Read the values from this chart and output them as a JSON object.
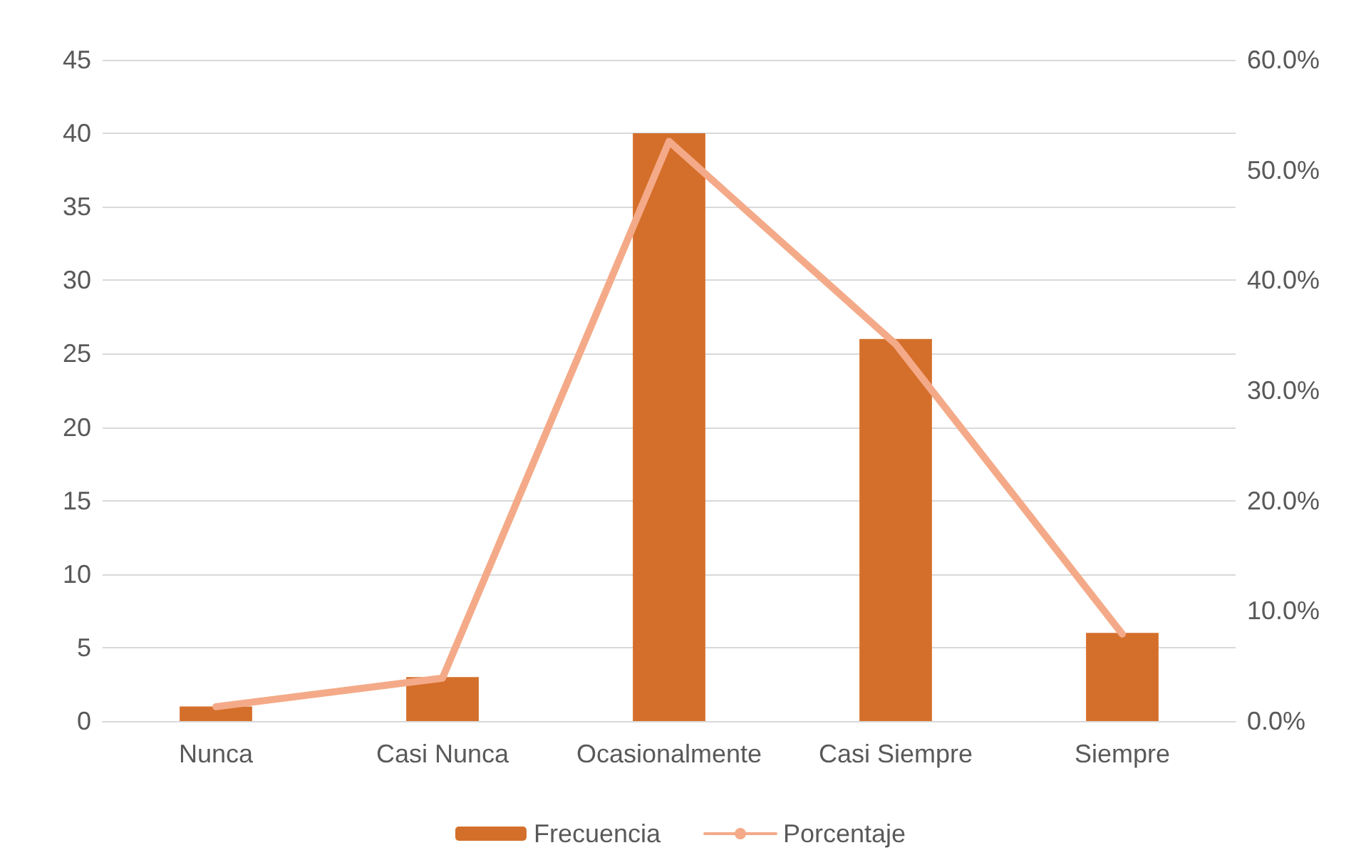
{
  "chart_data": {
    "type": "bar",
    "categories": [
      "Nunca",
      "Casi Nunca",
      "Ocasionalmente",
      "Casi Siempre",
      "Siempre"
    ],
    "series": [
      {
        "name": "Frecuencia",
        "color": "#d46f2b",
        "values": [
          1,
          3,
          40,
          26,
          6
        ]
      },
      {
        "name": "Porcentaje",
        "type": "line",
        "axis": "y2",
        "color": "#f4aa88",
        "values": [
          1.3,
          3.9,
          52.6,
          34.2,
          7.9
        ]
      }
    ],
    "ylim": [
      0,
      45
    ],
    "yticks": [
      0,
      5,
      10,
      15,
      20,
      25,
      30,
      35,
      40,
      45
    ],
    "y2lim": [
      0,
      60
    ],
    "y2ticks": [
      {
        "value": 0,
        "label": "0.0%"
      },
      {
        "value": 10,
        "label": "10.0%"
      },
      {
        "value": 20,
        "label": "20.0%"
      },
      {
        "value": 30,
        "label": "30.0%"
      },
      {
        "value": 40,
        "label": "40.0%"
      },
      {
        "value": 50,
        "label": "50.0%"
      },
      {
        "value": 60,
        "label": "60.0%"
      }
    ],
    "grid": "y",
    "legend": "bottom",
    "marker": "none",
    "line_style": "solid"
  }
}
